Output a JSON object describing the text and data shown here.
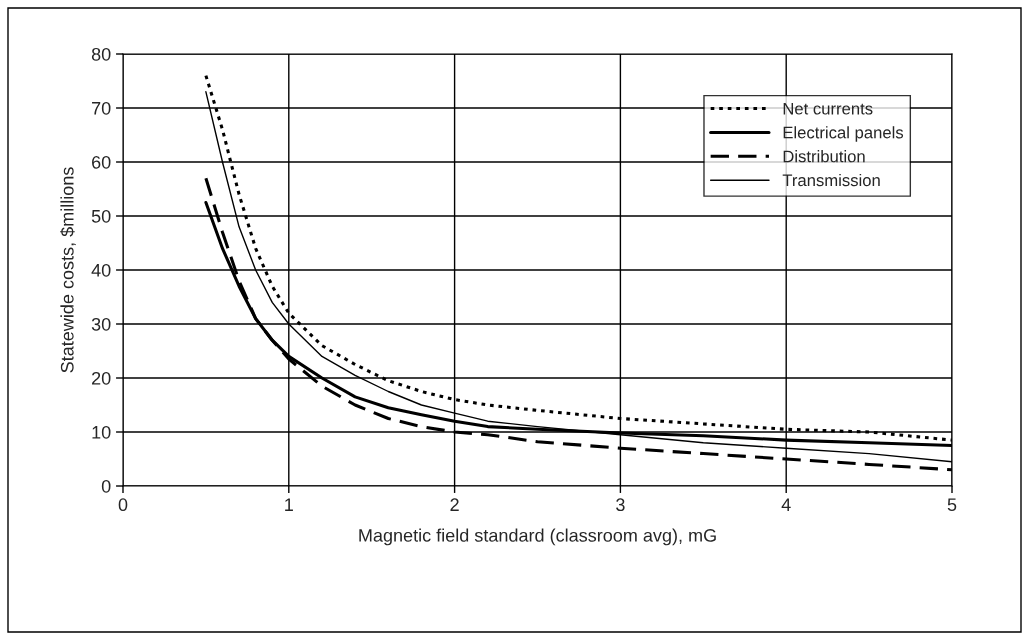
{
  "chart_data": {
    "type": "line",
    "xlabel": "Magnetic field standard (classroom avg), mG",
    "ylabel": "Statewide costs, $millions",
    "x": [
      0.5,
      0.6,
      0.7,
      0.8,
      0.9,
      1.0,
      1.2,
      1.4,
      1.6,
      1.8,
      2.0,
      2.2,
      2.5,
      3.0,
      3.5,
      4.0,
      4.5,
      5.0
    ],
    "series": [
      {
        "name": "Net currents",
        "color": "#000000",
        "line_style": "dotted",
        "values": [
          76,
          66,
          54,
          44,
          37,
          32,
          26,
          22.5,
          19.5,
          17.5,
          16,
          15,
          14,
          12.5,
          11.5,
          10.5,
          10,
          8.5
        ]
      },
      {
        "name": "Electrical panels",
        "color": "#000000",
        "line_style": "solid",
        "values": [
          52.5,
          44,
          37,
          31,
          27,
          24,
          20,
          16.5,
          14.5,
          13.2,
          12,
          11,
          10.5,
          9.8,
          9.3,
          8.5,
          8,
          7.5
        ]
      },
      {
        "name": "Distribution",
        "color": "#000000",
        "line_style": "dashed",
        "values": [
          57,
          47,
          38,
          31,
          27,
          23.5,
          18.5,
          15,
          12.5,
          11,
          10,
          9.5,
          8.2,
          7,
          6,
          5,
          4,
          3
        ]
      },
      {
        "name": "Transmission",
        "color": "#000000",
        "line_style": "solid",
        "values": [
          73,
          60,
          48,
          40,
          34,
          30,
          24,
          20.5,
          17.5,
          15,
          13.5,
          12,
          11,
          9.5,
          8,
          7,
          6,
          4.5
        ]
      }
    ],
    "xlim": [
      0,
      5
    ],
    "xticks": [
      0,
      1,
      2,
      3,
      4,
      5
    ],
    "ylim": [
      0,
      80
    ],
    "yticks": [
      0,
      10,
      20,
      30,
      40,
      50,
      60,
      70,
      80
    ],
    "grid": true,
    "legend": "top right",
    "marker": "none"
  }
}
